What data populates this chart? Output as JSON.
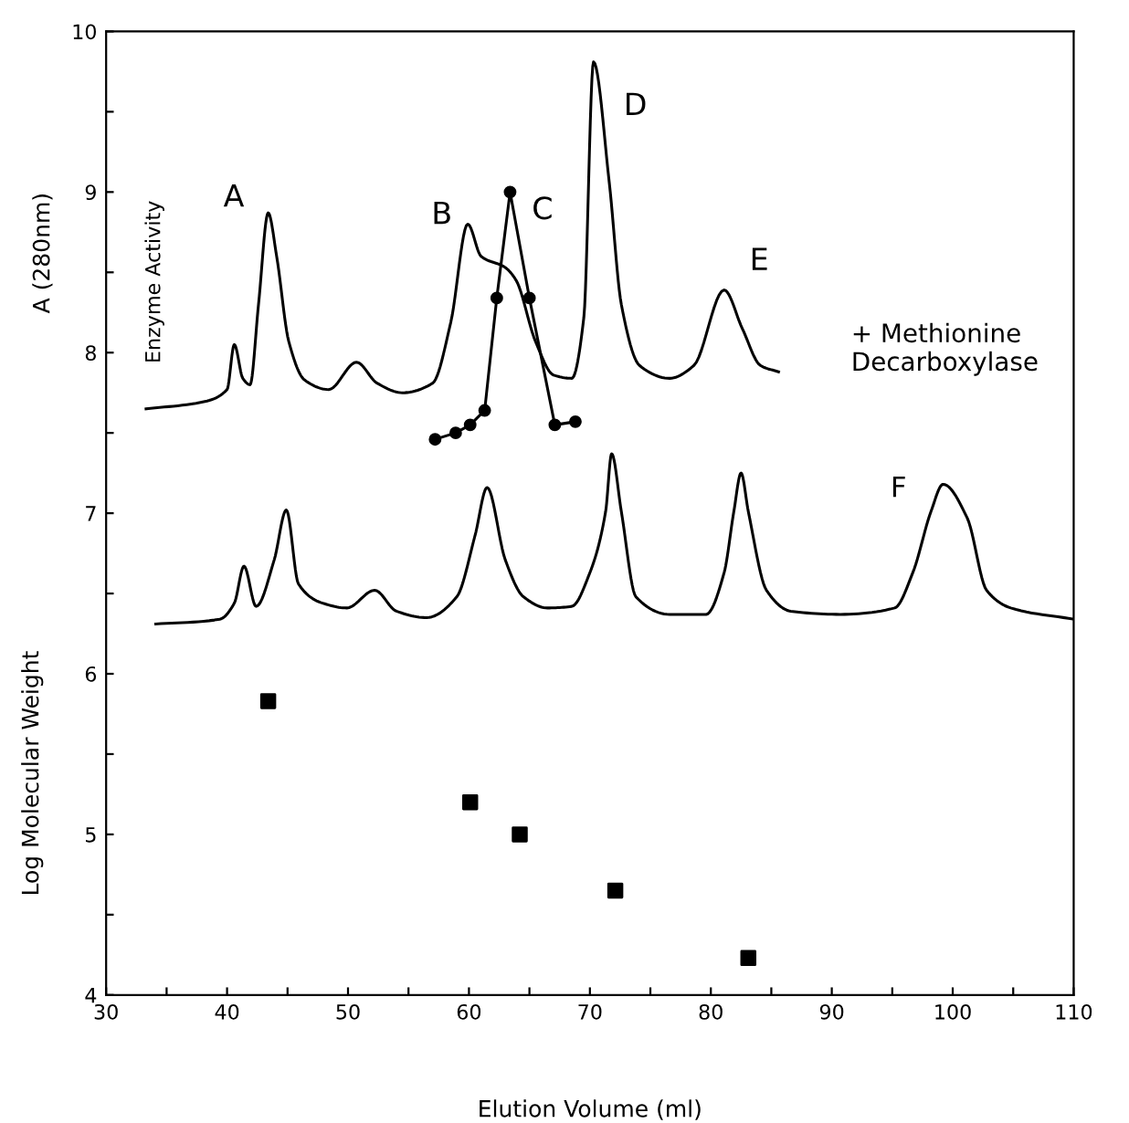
{
  "chart_data": {
    "type": "line",
    "xlabel": "Elution Volume (ml)",
    "ylabel": "Log Molecular Weight",
    "xlim": [
      30,
      110
    ],
    "ylim": [
      4,
      10
    ],
    "xticks": [
      30,
      {
        "value": 35,
        "label": null
      },
      40,
      {
        "value": 45,
        "label": null
      },
      50,
      {
        "value": 55,
        "label": null
      },
      60,
      {
        "value": 65,
        "label": null
      },
      70,
      {
        "value": 75,
        "label": null
      },
      80,
      {
        "value": 85,
        "label": null
      },
      90,
      {
        "value": 95,
        "label": null
      },
      100,
      {
        "value": 105,
        "label": null
      },
      110
    ],
    "yticks": [
      4,
      {
        "value": 4.5,
        "label": null
      },
      5,
      {
        "value": 5.5,
        "label": null
      },
      6,
      {
        "value": 6.5,
        "label": null
      },
      7,
      {
        "value": 7.5,
        "label": null
      },
      8,
      {
        "value": 8.5,
        "label": null
      },
      9,
      {
        "value": 9.5,
        "label": null
      },
      10
    ],
    "series": [
      {
        "color": "#000000",
        "marker": "none",
        "x": [
          33.3,
          37.8,
          40.0,
          40.6,
          41.3,
          41.9,
          42.6,
          43.4,
          44.1,
          45.1,
          46.4,
          48.4,
          50.7,
          52.4,
          54.5,
          57.0,
          58.5,
          59.9,
          61.0,
          63.0,
          63.9,
          65.5,
          67.0,
          68.5,
          69.5,
          70.3,
          71.6,
          72.6,
          74.1,
          76.6,
          78.6,
          81.1,
          82.6,
          84.1,
          85.6
        ],
        "values": [
          7.65,
          7.69,
          7.77,
          8.05,
          7.84,
          7.8,
          8.3,
          8.87,
          8.6,
          8.07,
          7.83,
          7.77,
          7.94,
          7.81,
          7.75,
          7.81,
          8.19,
          8.8,
          8.6,
          8.53,
          8.45,
          8.07,
          7.86,
          7.84,
          8.22,
          9.81,
          9.06,
          8.3,
          7.92,
          7.84,
          7.92,
          8.39,
          8.15,
          7.92,
          7.88
        ]
      },
      {
        "color": "#000000",
        "marker": "circle",
        "x": [
          57.2,
          58.9,
          60.1,
          61.3,
          62.3,
          63.4,
          65.0,
          67.1,
          68.8
        ],
        "values": [
          7.46,
          7.5,
          7.55,
          7.64,
          8.34,
          9.0,
          8.34,
          7.55,
          7.57
        ]
      },
      {
        "color": "#000000",
        "marker": "none",
        "x": [
          34.1,
          39.4,
          40.6,
          41.4,
          42.4,
          43.9,
          44.9,
          45.9,
          47.9,
          49.9,
          52.2,
          54.0,
          56.5,
          59.0,
          60.5,
          61.5,
          63.0,
          64.5,
          66.5,
          68.5,
          70.0,
          71.3,
          71.8,
          72.6,
          73.8,
          76.6,
          79.6,
          81.1,
          81.9,
          82.5,
          83.1,
          84.6,
          86.6,
          90.7,
          95.2,
          96.7,
          98.2,
          99.2,
          101.2,
          102.8,
          104.8,
          110.0
        ],
        "values": [
          6.31,
          6.34,
          6.44,
          6.67,
          6.42,
          6.71,
          7.02,
          6.56,
          6.44,
          6.41,
          6.52,
          6.39,
          6.35,
          6.48,
          6.86,
          7.16,
          6.71,
          6.48,
          6.41,
          6.42,
          6.63,
          7.01,
          7.37,
          7.01,
          6.48,
          6.37,
          6.37,
          6.63,
          7.01,
          7.25,
          7.01,
          6.52,
          6.39,
          6.37,
          6.41,
          6.63,
          7.01,
          7.18,
          6.97,
          6.52,
          6.41,
          6.34
        ]
      },
      {
        "type": "scatter",
        "color": "#000000",
        "marker": "square",
        "x": [
          43.4,
          60.1,
          64.2,
          72.1,
          83.1
        ],
        "values": [
          5.83,
          5.2,
          5.0,
          4.65,
          4.23
        ]
      }
    ],
    "annotations": [
      "A",
      "B",
      "C",
      "D",
      "E",
      "F",
      "A (280nm)",
      "Enzyme Activity",
      "+ Methionine Decarboxylase"
    ]
  }
}
